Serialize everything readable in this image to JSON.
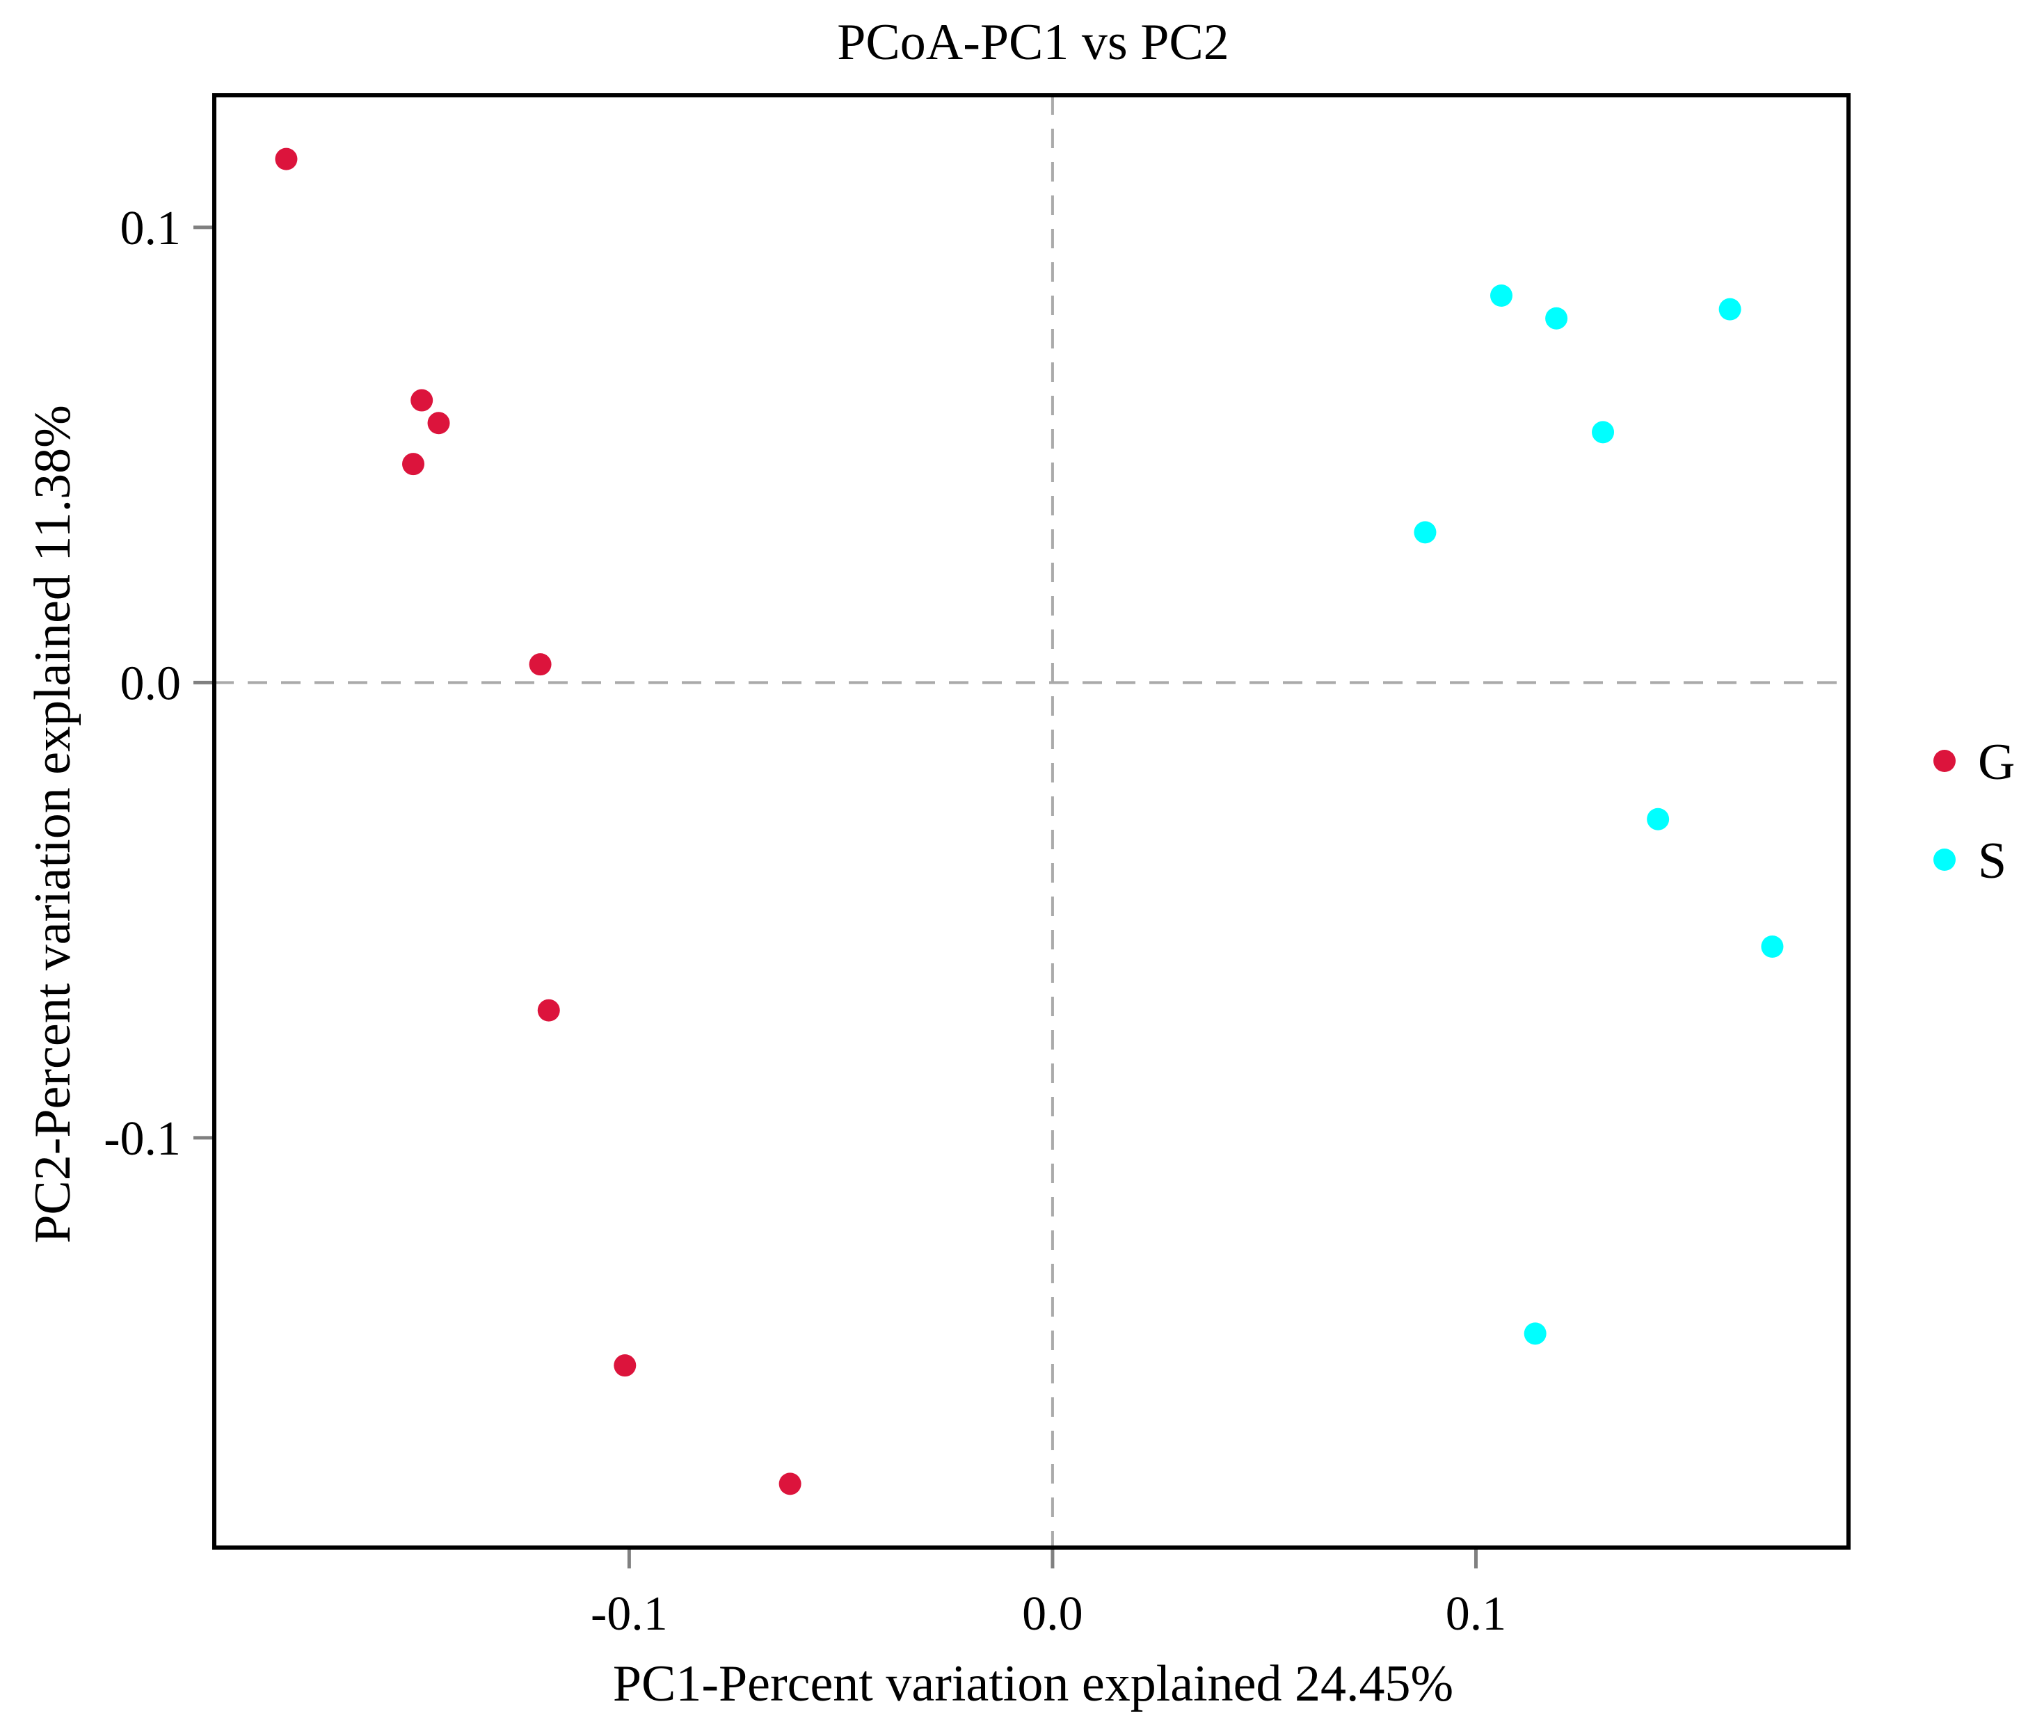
{
  "chart_data": {
    "type": "scatter",
    "title": "PCoA-PC1 vs PC2",
    "xlabel": "PC1-Percent variation explained 24.45%",
    "ylabel": "PC2-Percent variation explained 11.38%",
    "xlim": [
      -0.198,
      0.188
    ],
    "ylim": [
      -0.19,
      0.129
    ],
    "x_ticks": [
      {
        "value": -0.1,
        "label": "-0.1"
      },
      {
        "value": 0.0,
        "label": "0.0"
      },
      {
        "value": 0.1,
        "label": "0.1"
      }
    ],
    "y_ticks": [
      {
        "value": 0.1,
        "label": "0.1"
      },
      {
        "value": 0.0,
        "label": "0.0"
      },
      {
        "value": -0.1,
        "label": "-0.1"
      }
    ],
    "reference_lines": {
      "x": 0,
      "y": 0
    },
    "grid": false,
    "legend_position": "right",
    "series": [
      {
        "name": "G",
        "color": "#dc143c",
        "points": [
          {
            "x": -0.181,
            "y": 0.115
          },
          {
            "x": -0.149,
            "y": 0.062
          },
          {
            "x": -0.145,
            "y": 0.057
          },
          {
            "x": -0.151,
            "y": 0.048
          },
          {
            "x": -0.121,
            "y": 0.004
          },
          {
            "x": -0.119,
            "y": -0.072
          },
          {
            "x": -0.101,
            "y": -0.15
          },
          {
            "x": -0.062,
            "y": -0.176
          }
        ]
      },
      {
        "name": "S",
        "color": "#00ffff",
        "points": [
          {
            "x": 0.106,
            "y": 0.085
          },
          {
            "x": 0.119,
            "y": 0.08
          },
          {
            "x": 0.16,
            "y": 0.082
          },
          {
            "x": 0.13,
            "y": 0.055
          },
          {
            "x": 0.088,
            "y": 0.033
          },
          {
            "x": 0.143,
            "y": -0.03
          },
          {
            "x": 0.17,
            "y": -0.058
          },
          {
            "x": 0.114,
            "y": -0.143
          }
        ]
      }
    ]
  }
}
